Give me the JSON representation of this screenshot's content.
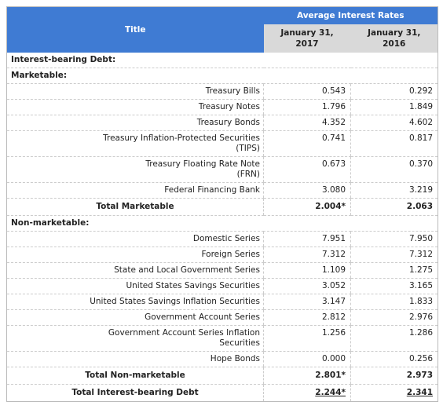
{
  "header": {
    "title": "Title",
    "group": "Average Interest Rates",
    "columns": [
      "January 31,\n2017",
      "January 31,\n2016"
    ]
  },
  "table": {
    "heading": "Interest-bearing Debt:",
    "groups": [
      {
        "title": "Marketable:",
        "rows": [
          {
            "label": "Treasury Bills",
            "values": [
              "0.543",
              "0.292"
            ]
          },
          {
            "label": "Treasury Notes",
            "values": [
              "1.796",
              "1.849"
            ]
          },
          {
            "label": "Treasury Bonds",
            "values": [
              "4.352",
              "4.602"
            ]
          },
          {
            "label": "Treasury Inflation-Protected Securities\n(TIPS)",
            "values": [
              "0.741",
              "0.817"
            ]
          },
          {
            "label": "Treasury Floating Rate Note\n(FRN)",
            "values": [
              "0.673",
              "0.370"
            ]
          },
          {
            "label": "Federal Financing Bank",
            "values": [
              "3.080",
              "3.219"
            ]
          }
        ],
        "total": {
          "label": "Total Marketable",
          "values": [
            "2.004*",
            "2.063"
          ]
        }
      },
      {
        "title": "Non-marketable:",
        "rows": [
          {
            "label": "Domestic Series",
            "values": [
              "7.951",
              "7.950"
            ]
          },
          {
            "label": "Foreign Series",
            "values": [
              "7.312",
              "7.312"
            ]
          },
          {
            "label": "State and Local Government Series",
            "values": [
              "1.109",
              "1.275"
            ]
          },
          {
            "label": "United States Savings Securities",
            "values": [
              "3.052",
              "3.165"
            ]
          },
          {
            "label": "United States Savings Inflation Securities",
            "values": [
              "3.147",
              "1.833"
            ]
          },
          {
            "label": "Government Account Series",
            "values": [
              "2.812",
              "2.976"
            ]
          },
          {
            "label": "Government Account Series Inflation\nSecurities",
            "values": [
              "1.256",
              "1.286"
            ]
          },
          {
            "label": "Hope Bonds",
            "values": [
              "0.000",
              "0.256"
            ]
          }
        ],
        "total": {
          "label": "Total Non-marketable",
          "values": [
            "2.801*",
            "2.973"
          ]
        }
      }
    ],
    "grand_total": {
      "label": "Total Interest-bearing Debt",
      "values": [
        "2.244*",
        "2.341"
      ]
    }
  }
}
